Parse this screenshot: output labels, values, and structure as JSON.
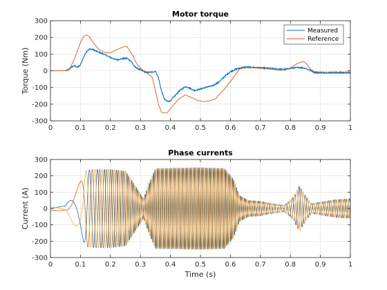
{
  "colors": {
    "measured": "#0072BD",
    "reference": "#D95319",
    "phase_a": "#0072BD",
    "phase_b": "#D95319",
    "phase_c": "#EDB120",
    "grid": "#dcdcdc",
    "axis": "#262626"
  },
  "chart_data": [
    {
      "type": "line",
      "title": "Motor torque",
      "xlabel": "",
      "ylabel": "Torque (Nm)",
      "xlim": [
        0,
        1
      ],
      "ylim": [
        -300,
        300
      ],
      "xticks": [
        0,
        0.1,
        0.2,
        0.3,
        0.4,
        0.5,
        0.6,
        0.7,
        0.8,
        0.9,
        1
      ],
      "xtick_labels": [
        "0",
        "0.1",
        "0.2",
        "0.3",
        "0.4",
        "0.5",
        "0.6",
        "0.7",
        "0.8",
        "0.9",
        "1"
      ],
      "yticks": [
        -300,
        -200,
        -100,
        0,
        100,
        200,
        300
      ],
      "ytick_labels": [
        "-300",
        "-200",
        "-100",
        "0",
        "100",
        "200",
        "300"
      ],
      "grid": true,
      "legend": "top-right",
      "series": [
        {
          "name": "Measured",
          "color_key": "measured",
          "noise": 4,
          "points": [
            [
              0,
              0
            ],
            [
              0.05,
              0
            ],
            [
              0.06,
              5
            ],
            [
              0.07,
              22
            ],
            [
              0.08,
              30
            ],
            [
              0.09,
              20
            ],
            [
              0.1,
              35
            ],
            [
              0.11,
              80
            ],
            [
              0.12,
              115
            ],
            [
              0.13,
              130
            ],
            [
              0.14,
              128
            ],
            [
              0.16,
              112
            ],
            [
              0.18,
              98
            ],
            [
              0.2,
              80
            ],
            [
              0.22,
              65
            ],
            [
              0.24,
              72
            ],
            [
              0.255,
              75
            ],
            [
              0.27,
              55
            ],
            [
              0.28,
              25
            ],
            [
              0.3,
              5
            ],
            [
              0.32,
              -10
            ],
            [
              0.34,
              -8
            ],
            [
              0.35,
              -2
            ],
            [
              0.36,
              -40
            ],
            [
              0.37,
              -120
            ],
            [
              0.38,
              -170
            ],
            [
              0.39,
              -185
            ],
            [
              0.4,
              -180
            ],
            [
              0.41,
              -160
            ],
            [
              0.43,
              -120
            ],
            [
              0.45,
              -95
            ],
            [
              0.46,
              -100
            ],
            [
              0.48,
              -118
            ],
            [
              0.5,
              -110
            ],
            [
              0.52,
              -98
            ],
            [
              0.54,
              -90
            ],
            [
              0.56,
              -70
            ],
            [
              0.58,
              -35
            ],
            [
              0.6,
              -5
            ],
            [
              0.62,
              10
            ],
            [
              0.64,
              20
            ],
            [
              0.66,
              22
            ],
            [
              0.7,
              18
            ],
            [
              0.73,
              15
            ],
            [
              0.76,
              10
            ],
            [
              0.78,
              8
            ],
            [
              0.8,
              15
            ],
            [
              0.83,
              20
            ],
            [
              0.85,
              15
            ],
            [
              0.87,
              0
            ],
            [
              0.88,
              -8
            ],
            [
              0.9,
              -10
            ],
            [
              1,
              -10
            ]
          ]
        },
        {
          "name": "Reference",
          "color_key": "reference",
          "noise": 0,
          "points": [
            [
              0,
              0
            ],
            [
              0.05,
              0
            ],
            [
              0.065,
              15
            ],
            [
              0.08,
              70
            ],
            [
              0.1,
              170
            ],
            [
              0.11,
              205
            ],
            [
              0.12,
              215
            ],
            [
              0.13,
              205
            ],
            [
              0.14,
              175
            ],
            [
              0.16,
              130
            ],
            [
              0.18,
              110
            ],
            [
              0.2,
              108
            ],
            [
              0.22,
              125
            ],
            [
              0.24,
              142
            ],
            [
              0.255,
              145
            ],
            [
              0.27,
              105
            ],
            [
              0.29,
              35
            ],
            [
              0.31,
              0
            ],
            [
              0.33,
              -25
            ],
            [
              0.34,
              -40
            ],
            [
              0.35,
              -120
            ],
            [
              0.36,
              -200
            ],
            [
              0.37,
              -248
            ],
            [
              0.38,
              -252
            ],
            [
              0.39,
              -250
            ],
            [
              0.41,
              -205
            ],
            [
              0.43,
              -165
            ],
            [
              0.45,
              -145
            ],
            [
              0.47,
              -160
            ],
            [
              0.49,
              -178
            ],
            [
              0.51,
              -185
            ],
            [
              0.53,
              -180
            ],
            [
              0.55,
              -168
            ],
            [
              0.58,
              -110
            ],
            [
              0.61,
              -40
            ],
            [
              0.63,
              10
            ],
            [
              0.65,
              20
            ],
            [
              0.7,
              15
            ],
            [
              0.73,
              10
            ],
            [
              0.76,
              5
            ],
            [
              0.78,
              5
            ],
            [
              0.8,
              15
            ],
            [
              0.82,
              40
            ],
            [
              0.84,
              55
            ],
            [
              0.85,
              48
            ],
            [
              0.87,
              5
            ],
            [
              0.88,
              -15
            ],
            [
              0.9,
              -15
            ],
            [
              1,
              -15
            ]
          ]
        }
      ]
    },
    {
      "type": "line",
      "title": "Phase currents",
      "xlabel": "Time (s)",
      "ylabel": "Current (A)",
      "xlim": [
        0,
        1
      ],
      "ylim": [
        -300,
        300
      ],
      "xticks": [
        0,
        0.1,
        0.2,
        0.3,
        0.4,
        0.5,
        0.6,
        0.7,
        0.8,
        0.9,
        1
      ],
      "xtick_labels": [
        "0",
        "0.1",
        "0.2",
        "0.3",
        "0.4",
        "0.5",
        "0.6",
        "0.7",
        "0.8",
        "0.9",
        "1"
      ],
      "yticks": [
        -300,
        -200,
        -100,
        0,
        100,
        200,
        300
      ],
      "ytick_labels": [
        "-300",
        "-200",
        "-100",
        "0",
        "100",
        "200",
        "300"
      ],
      "grid": true,
      "legend": "none",
      "phases_deg": [
        0,
        120,
        240
      ],
      "series_color_keys": [
        "phase_a",
        "phase_b",
        "phase_c"
      ],
      "amplitude_envelope": [
        [
          0,
          10
        ],
        [
          0.05,
          15
        ],
        [
          0.09,
          130
        ],
        [
          0.12,
          235
        ],
        [
          0.15,
          240
        ],
        [
          0.2,
          240
        ],
        [
          0.25,
          230
        ],
        [
          0.29,
          120
        ],
        [
          0.31,
          60
        ],
        [
          0.33,
          160
        ],
        [
          0.35,
          245
        ],
        [
          0.5,
          250
        ],
        [
          0.58,
          245
        ],
        [
          0.61,
          180
        ],
        [
          0.63,
          80
        ],
        [
          0.66,
          50
        ],
        [
          0.7,
          45
        ],
        [
          0.74,
          30
        ],
        [
          0.78,
          20
        ],
        [
          0.81,
          70
        ],
        [
          0.83,
          140
        ],
        [
          0.85,
          80
        ],
        [
          0.87,
          30
        ],
        [
          0.9,
          40
        ],
        [
          0.95,
          55
        ],
        [
          1,
          60
        ]
      ],
      "frequency_hz": [
        [
          0,
          4
        ],
        [
          0.1,
          8
        ],
        [
          0.13,
          35
        ],
        [
          0.3,
          70
        ],
        [
          0.6,
          80
        ],
        [
          0.7,
          60
        ],
        [
          0.8,
          45
        ],
        [
          1,
          60
        ]
      ]
    }
  ]
}
